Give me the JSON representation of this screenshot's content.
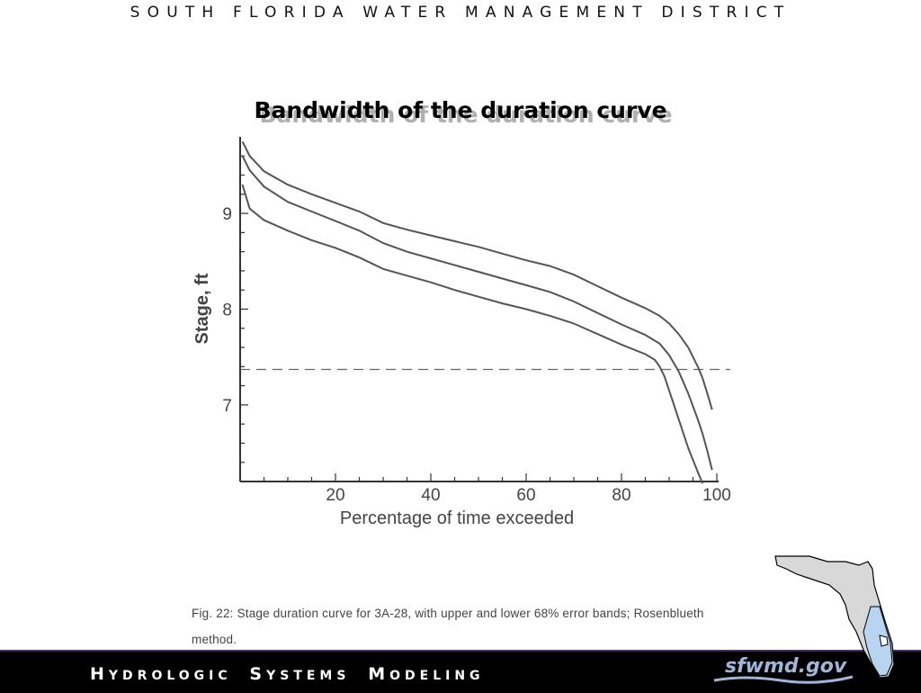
{
  "header": {
    "org_name": "SOUTH FLORIDA WATER MANAGEMENT DISTRICT"
  },
  "slide": {
    "title": "Bandwidth of the duration curve"
  },
  "caption": {
    "line1": "Fig.  22:  Stage duration curve for 3A-28, with upper and lower 68% error bands; Rosenblueth",
    "line2": "method."
  },
  "footer": {
    "title_parts": [
      {
        "cap": "H",
        "rest": "YDROLOGIC"
      },
      {
        "cap": "S",
        "rest": "YSTEMS"
      },
      {
        "cap": "M",
        "rest": "ODELING"
      }
    ],
    "logo_text": "sfwmd.gov"
  },
  "colors": {
    "curve": "#555555",
    "axis": "#333333",
    "footer_bg": "#000000",
    "logo": "#9fb7d8",
    "map_fill": "#d8d8d8",
    "map_highlight": "#b7d4f0"
  },
  "icons": {
    "map": "florida-map-icon",
    "logo_wave": "wave-icon"
  },
  "chart_data": {
    "type": "line",
    "title": "",
    "xlabel": "Percentage of time exceeded",
    "ylabel": "Stage, ft",
    "xlim": [
      0,
      100
    ],
    "ylim": [
      6.2,
      9.8
    ],
    "x_ticks": [
      20,
      40,
      60,
      80,
      100
    ],
    "y_ticks": [
      7,
      8,
      9
    ],
    "grid": false,
    "reference_line": {
      "y": 7.37,
      "style": "dashed"
    },
    "series": [
      {
        "band": "upper",
        "x": [
          0.5,
          2,
          5,
          10,
          15,
          20,
          25,
          30,
          35,
          40,
          45,
          50,
          55,
          60,
          65,
          70,
          75,
          80,
          85,
          88,
          90,
          92,
          94,
          96,
          97,
          98,
          99
        ],
        "y": [
          9.75,
          9.6,
          9.44,
          9.3,
          9.2,
          9.11,
          9.02,
          8.9,
          8.83,
          8.77,
          8.71,
          8.65,
          8.58,
          8.51,
          8.45,
          8.36,
          8.24,
          8.12,
          8.01,
          7.93,
          7.85,
          7.74,
          7.6,
          7.4,
          7.28,
          7.12,
          6.95
        ]
      },
      {
        "band": "central",
        "x": [
          0.5,
          2,
          5,
          10,
          15,
          20,
          25,
          30,
          35,
          40,
          45,
          50,
          55,
          60,
          65,
          70,
          75,
          80,
          85,
          88,
          90,
          92,
          94,
          96,
          97,
          98,
          99
        ],
        "y": [
          9.6,
          9.45,
          9.28,
          9.12,
          9.02,
          8.92,
          8.82,
          8.69,
          8.6,
          8.53,
          8.46,
          8.39,
          8.32,
          8.25,
          8.18,
          8.08,
          7.96,
          7.84,
          7.73,
          7.64,
          7.52,
          7.35,
          7.12,
          6.85,
          6.7,
          6.52,
          6.32
        ]
      },
      {
        "band": "lower",
        "x": [
          0.5,
          2,
          5,
          10,
          15,
          20,
          25,
          30,
          35,
          40,
          45,
          50,
          55,
          60,
          65,
          70,
          75,
          80,
          85,
          87,
          88,
          89,
          90,
          92,
          94,
          96,
          97
        ],
        "y": [
          9.3,
          9.05,
          8.93,
          8.82,
          8.72,
          8.64,
          8.54,
          8.42,
          8.35,
          8.28,
          8.2,
          8.13,
          8.06,
          8.0,
          7.93,
          7.85,
          7.74,
          7.63,
          7.53,
          7.47,
          7.4,
          7.3,
          7.15,
          6.85,
          6.55,
          6.3,
          6.18
        ]
      }
    ]
  }
}
